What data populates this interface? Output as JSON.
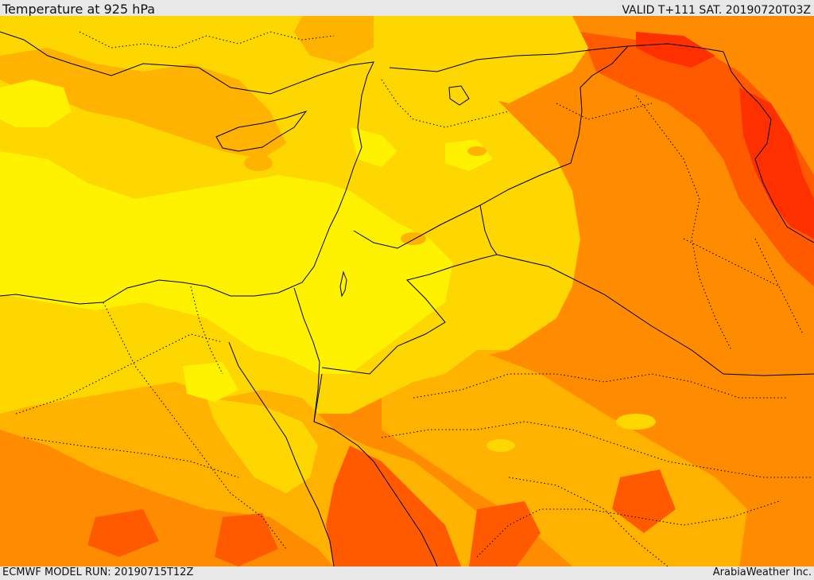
{
  "header": {
    "title": "Temperature at 925 hPa",
    "valid": "VALID T+111 SAT. 20190720T03Z"
  },
  "footer": {
    "model_run": "ECMWF MODEL RUN: 20190715T12Z",
    "credit": "ArabiaWeather Inc."
  },
  "colors": {
    "yellow": "#fff200",
    "gold": "#ffd700",
    "amber": "#ffb300",
    "orange": "#ff8c00",
    "red_orange": "#ff5a00",
    "red": "#ff3000",
    "border_line": "#000000"
  }
}
